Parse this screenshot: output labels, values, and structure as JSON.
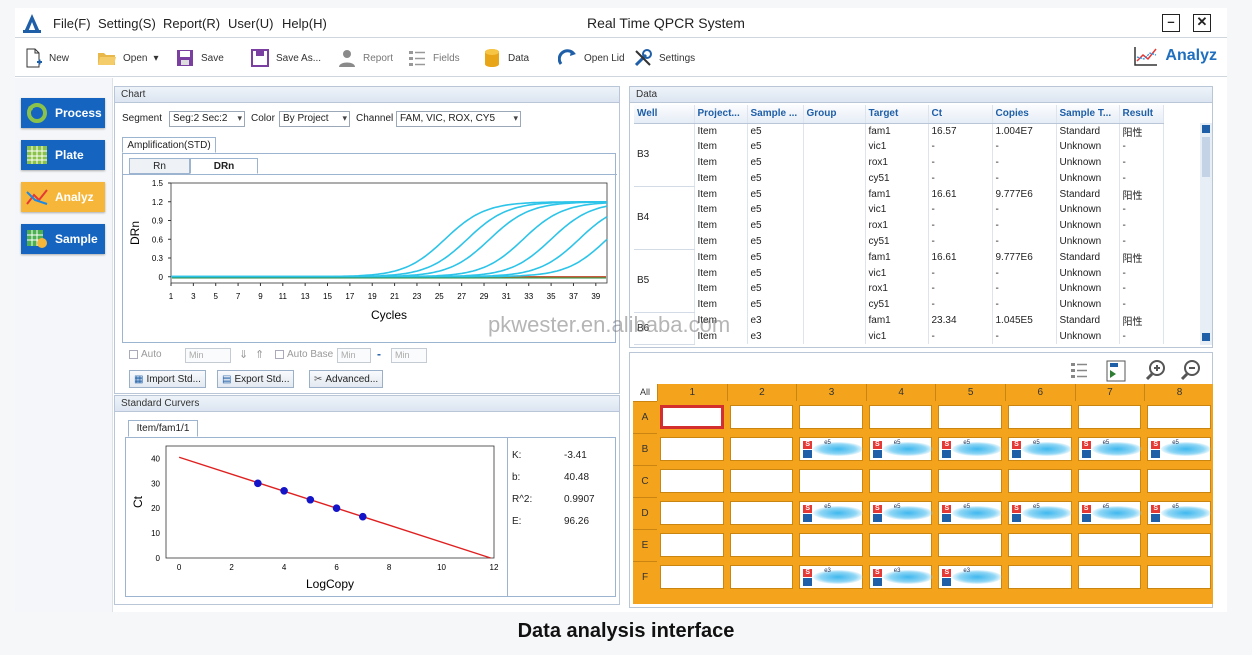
{
  "titlebar": {
    "menus": [
      "File(F)",
      "Setting(S)",
      "Report(R)",
      "User(U)",
      "Help(H)"
    ],
    "title": "Real Time QPCR System"
  },
  "toolbar": {
    "new": "New",
    "open": "Open",
    "save": "Save",
    "save_as": "Save As...",
    "report": "Report",
    "fields": "Fields",
    "data": "Data",
    "open_lid": "Open Lid",
    "settings": "Settings",
    "brand": "Analyz"
  },
  "nav": {
    "process": "Process",
    "plate": "Plate",
    "analyz": "Analyz",
    "sample": "Sample"
  },
  "chart_panel": {
    "title": "Chart",
    "segment_label": "Segment",
    "segment_value": "Seg:2 Sec:2",
    "color_label": "Color",
    "color_value": "By Project",
    "channel_label": "Channel",
    "channel_value": "FAM, VIC, ROX, CY5",
    "tab_amp": "Amplification(STD)",
    "tab_rn": "Rn",
    "tab_drn": "DRn",
    "auto": "Auto",
    "min": "Min",
    "auto_base": "Auto Base",
    "dash": "-",
    "import_std": "Import Std...",
    "export_std": "Export Std...",
    "advanced": "Advanced..."
  },
  "std_panel": {
    "title": "Standard Curvers",
    "tab": "Item/fam1/1",
    "stats": [
      {
        "k": "K:",
        "v": "-3.41"
      },
      {
        "k": "b:",
        "v": "40.48"
      },
      {
        "k": "R^2:",
        "v": "0.9907"
      },
      {
        "k": "E:",
        "v": "96.26"
      }
    ]
  },
  "data_panel": {
    "title": "Data",
    "columns": [
      "Well",
      "Project...",
      "Sample ...",
      "Group",
      "Target",
      "Ct",
      "Copies",
      "Sample T...",
      "Result"
    ],
    "wells": [
      {
        "well": "B3",
        "rows": [
          [
            "Item",
            "e5",
            "",
            "fam1",
            "16.57",
            "1.004E7",
            "Standard",
            "阳性"
          ],
          [
            "Item",
            "e5",
            "",
            "vic1",
            "-",
            "-",
            "Unknown",
            "-"
          ],
          [
            "Item",
            "e5",
            "",
            "rox1",
            "-",
            "-",
            "Unknown",
            "-"
          ],
          [
            "Item",
            "e5",
            "",
            "cy51",
            "-",
            "-",
            "Unknown",
            "-"
          ]
        ]
      },
      {
        "well": "B4",
        "rows": [
          [
            "Item",
            "e5",
            "",
            "fam1",
            "16.61",
            "9.777E6",
            "Standard",
            "阳性"
          ],
          [
            "Item",
            "e5",
            "",
            "vic1",
            "-",
            "-",
            "Unknown",
            "-"
          ],
          [
            "Item",
            "e5",
            "",
            "rox1",
            "-",
            "-",
            "Unknown",
            "-"
          ],
          [
            "Item",
            "e5",
            "",
            "cy51",
            "-",
            "-",
            "Unknown",
            "-"
          ]
        ]
      },
      {
        "well": "B5",
        "rows": [
          [
            "Item",
            "e5",
            "",
            "fam1",
            "16.61",
            "9.777E6",
            "Standard",
            "阳性"
          ],
          [
            "Item",
            "e5",
            "",
            "vic1",
            "-",
            "-",
            "Unknown",
            "-"
          ],
          [
            "Item",
            "e5",
            "",
            "rox1",
            "-",
            "-",
            "Unknown",
            "-"
          ],
          [
            "Item",
            "e5",
            "",
            "cy51",
            "-",
            "-",
            "Unknown",
            "-"
          ]
        ]
      },
      {
        "well": "B6",
        "rows": [
          [
            "Item",
            "e3",
            "",
            "fam1",
            "23.34",
            "1.045E5",
            "Standard",
            "阳性"
          ],
          [
            "Item",
            "e3",
            "",
            "vic1",
            "-",
            "-",
            "Unknown",
            "-"
          ]
        ]
      }
    ]
  },
  "plate": {
    "all": "All",
    "cols": [
      "1",
      "2",
      "3",
      "4",
      "5",
      "6",
      "7",
      "8"
    ],
    "rows": [
      "A",
      "B",
      "C",
      "D",
      "E",
      "F"
    ],
    "labels": {
      "e5": "e5",
      "e3": "e3"
    },
    "S": "S",
    "U": "U",
    "filled": {
      "B": [
        3,
        4,
        5,
        6,
        7,
        8
      ],
      "D": [
        3,
        4,
        5,
        6,
        7,
        8
      ],
      "F": [
        3,
        4,
        5
      ]
    },
    "row_label": {
      "B": "e5",
      "D": "e5",
      "F": "e3"
    }
  },
  "caption": "Data analysis interface",
  "watermark": "pkwester.en.alibaba.com",
  "chart_data": [
    {
      "type": "line",
      "xlabel": "Cycles",
      "ylabel": "DRn",
      "ylim": [
        -0.1,
        1.5
      ],
      "xlim": [
        1,
        40
      ],
      "x_ticks": [
        "1",
        "3",
        "5",
        "7",
        "9",
        "11",
        "13",
        "15",
        "17",
        "19",
        "21",
        "23",
        "25",
        "27",
        "29",
        "31",
        "33",
        "35",
        "37",
        "39"
      ],
      "y_ticks": [
        "1.5",
        "1.2",
        "0.9",
        "0.6",
        "0.3",
        "0"
      ],
      "curve_midpoints_cycles": [
        25.5,
        27.5,
        29.5,
        32.5,
        35,
        37.5,
        40
      ],
      "curve_plateau": 1.2,
      "baseline": 0,
      "colors": {
        "amplification": "#2cc4e8",
        "baseline": "#b03020"
      }
    },
    {
      "type": "scatter",
      "xlabel": "LogCopy",
      "ylabel": "Ct",
      "xlim": [
        -0.5,
        12
      ],
      "ylim": [
        0,
        45
      ],
      "x_ticks": [
        "0",
        "2",
        "4",
        "6",
        "8",
        "10",
        "12"
      ],
      "y_ticks": [
        "40",
        "30",
        "20",
        "10",
        "0"
      ],
      "points": [
        {
          "x": 3,
          "y": 30.0
        },
        {
          "x": 4,
          "y": 27.0
        },
        {
          "x": 5,
          "y": 23.4
        },
        {
          "x": 6,
          "y": 20.0
        },
        {
          "x": 7,
          "y": 16.6
        }
      ],
      "fit": {
        "slope": -3.41,
        "intercept": 40.48
      },
      "colors": {
        "line": "#e02020",
        "points": "#1414c8"
      }
    }
  ]
}
